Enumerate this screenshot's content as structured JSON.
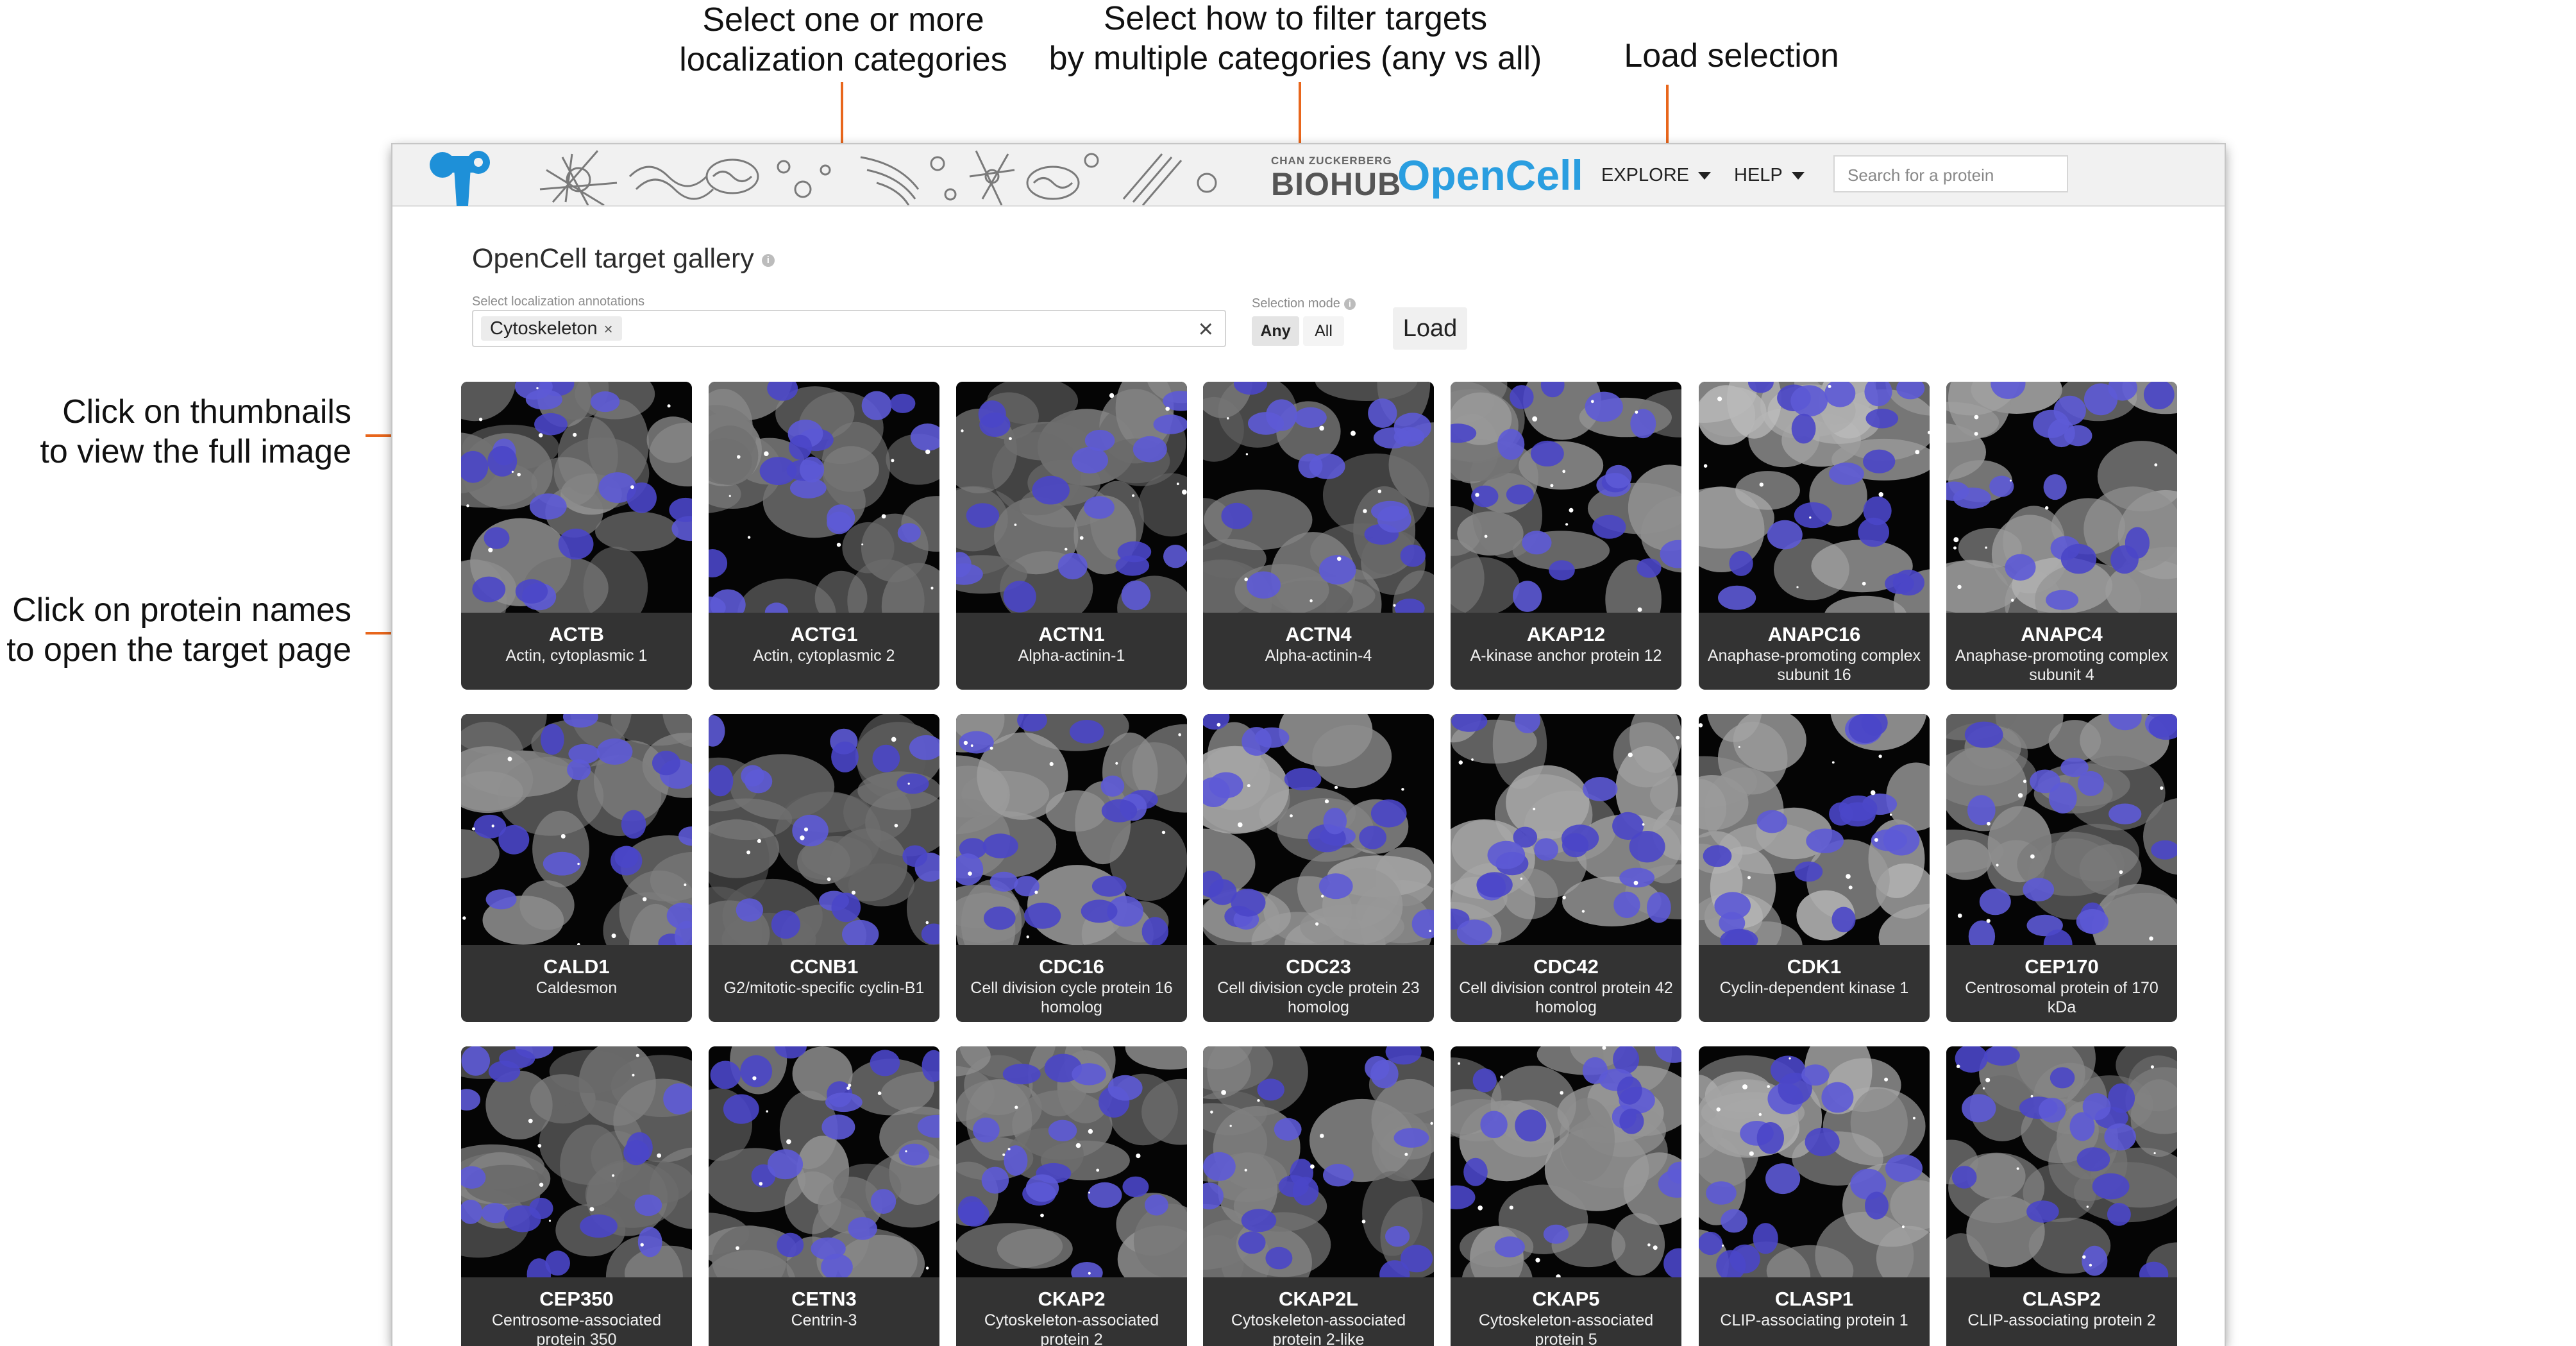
{
  "annotations": {
    "categories": [
      "Select one or more",
      "localization categories"
    ],
    "mode": [
      "Select how to filter targets",
      "by multiple categories (any vs all)"
    ],
    "load": [
      "Load selection"
    ],
    "thumbnails": [
      "Click on thumbnails",
      "to view the full image"
    ],
    "names": [
      "Click on protein names",
      "to open the target page"
    ]
  },
  "navbar": {
    "biohub_small": "CHAN ZUCKERBERG",
    "biohub_big": "BIOHUB",
    "app_name": "OpenCell",
    "explore_label": "EXPLORE",
    "help_label": "HELP",
    "search_placeholder": "Search for a protein"
  },
  "gallery": {
    "title": "OpenCell target gallery",
    "info_icon": "i",
    "localization_label": "Select localization annotations",
    "selected_chip": "Cytoskeleton",
    "chip_remove": "×",
    "clear": "×",
    "mode_label": "Selection mode",
    "mode_any": "Any",
    "mode_all": "All",
    "load_label": "Load"
  },
  "targets": [
    {
      "name": "ACTB",
      "desc": "Actin, cytoplasmic 1",
      "brightness": 0.45
    },
    {
      "name": "ACTG1",
      "desc": "Actin, cytoplasmic 2",
      "brightness": 0.4
    },
    {
      "name": "ACTN1",
      "desc": "Alpha-actinin-1",
      "brightness": 0.4
    },
    {
      "name": "ACTN4",
      "desc": "Alpha-actinin-4",
      "brightness": 0.35
    },
    {
      "name": "AKAP12",
      "desc": "A-kinase anchor protein 12",
      "brightness": 0.5
    },
    {
      "name": "ANAPC16",
      "desc": "Anaphase-promoting complex subunit 16",
      "brightness": 0.75
    },
    {
      "name": "ANAPC4",
      "desc": "Anaphase-promoting complex subunit 4",
      "brightness": 0.65
    },
    {
      "name": "CALD1",
      "desc": "Caldesmon",
      "brightness": 0.45
    },
    {
      "name": "CCNB1",
      "desc": "G2/mitotic-specific cyclin-B1",
      "brightness": 0.3
    },
    {
      "name": "CDC16",
      "desc": "Cell division cycle protein 16 homolog",
      "brightness": 0.55
    },
    {
      "name": "CDC23",
      "desc": "Cell division cycle protein 23 homolog",
      "brightness": 0.6
    },
    {
      "name": "CDC42",
      "desc": "Cell division control protein 42 homolog",
      "brightness": 0.6
    },
    {
      "name": "CDK1",
      "desc": "Cyclin-dependent kinase 1",
      "brightness": 0.7
    },
    {
      "name": "CEP170",
      "desc": "Centrosomal protein of 170 kDa",
      "brightness": 0.45
    },
    {
      "name": "CEP350",
      "desc": "Centrosome-associated protein 350",
      "brightness": 0.4
    },
    {
      "name": "CETN3",
      "desc": "Centrin-3",
      "brightness": 0.45
    },
    {
      "name": "CKAP2",
      "desc": "Cytoskeleton-associated protein 2",
      "brightness": 0.45
    },
    {
      "name": "CKAP2L",
      "desc": "Cytoskeleton-associated protein 2-like",
      "brightness": 0.4
    },
    {
      "name": "CKAP5",
      "desc": "Cytoskeleton-associated protein 5",
      "brightness": 0.55
    },
    {
      "name": "CLASP1",
      "desc": "CLIP-associating protein 1",
      "brightness": 0.65
    },
    {
      "name": "CLASP2",
      "desc": "CLIP-associating protein 2",
      "brightness": 0.45
    }
  ]
}
